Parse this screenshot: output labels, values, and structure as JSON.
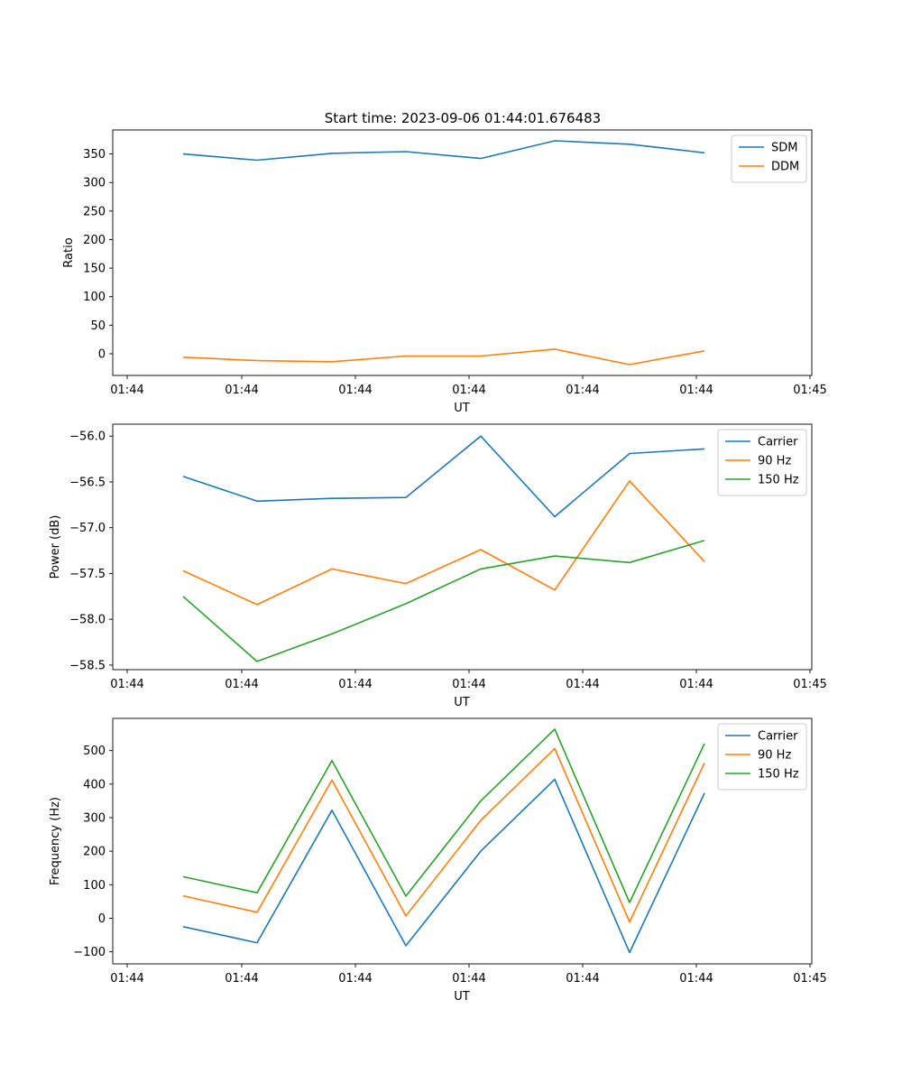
{
  "title": "Start time: 2023-09-06 01:44:01.676483",
  "chart_data": [
    {
      "type": "line",
      "xlabel": "UT",
      "ylabel": "Ratio",
      "x_tick_labels": [
        "01:44",
        "01:44",
        "01:44",
        "01:44",
        "01:44",
        "01:44",
        "01:45"
      ],
      "ylim": [
        -38,
        392
      ],
      "y_ticks": [
        0,
        50,
        100,
        150,
        200,
        250,
        300,
        350
      ],
      "y_tick_labels": [
        "0",
        "50",
        "100",
        "150",
        "200",
        "250",
        "300",
        "350"
      ],
      "legend": "top-right",
      "series": [
        {
          "name": "SDM",
          "color": "#1f77b4",
          "values": [
            350,
            339,
            351,
            354,
            342,
            373,
            367,
            352
          ]
        },
        {
          "name": "DDM",
          "color": "#ff7f0e",
          "values": [
            -6,
            -12,
            -14,
            -4,
            -4,
            8,
            -19,
            5
          ]
        }
      ]
    },
    {
      "type": "line",
      "xlabel": "UT",
      "ylabel": "Power (dB)",
      "x_tick_labels": [
        "01:44",
        "01:44",
        "01:44",
        "01:44",
        "01:44",
        "01:44",
        "01:45"
      ],
      "ylim": [
        -58.55,
        -55.87
      ],
      "y_ticks": [
        -58.5,
        -58.0,
        -57.5,
        -57.0,
        -56.5,
        -56.0
      ],
      "y_tick_labels": [
        "−58.5",
        "−58.0",
        "−57.5",
        "−57.0",
        "−56.5",
        "−56.0"
      ],
      "legend": "top-right",
      "series": [
        {
          "name": "Carrier",
          "color": "#1f77b4",
          "values": [
            -56.44,
            -56.71,
            -56.68,
            -56.67,
            -56.0,
            -56.88,
            -56.19,
            -56.14
          ]
        },
        {
          "name": "90 Hz",
          "color": "#ff7f0e",
          "values": [
            -57.47,
            -57.84,
            -57.45,
            -57.61,
            -57.24,
            -57.68,
            -56.49,
            -57.37
          ]
        },
        {
          "name": "150 Hz",
          "color": "#2ca02c",
          "values": [
            -57.75,
            -58.46,
            -58.16,
            -57.83,
            -57.45,
            -57.31,
            -57.38,
            -57.14
          ]
        }
      ]
    },
    {
      "type": "line",
      "xlabel": "UT",
      "ylabel": "Frequency (Hz)",
      "x_tick_labels": [
        "01:44",
        "01:44",
        "01:44",
        "01:44",
        "01:44",
        "01:44",
        "01:45"
      ],
      "ylim": [
        -136,
        596
      ],
      "y_ticks": [
        -100,
        0,
        100,
        200,
        300,
        400,
        500
      ],
      "y_tick_labels": [
        "−100",
        "0",
        "100",
        "200",
        "300",
        "400",
        "500"
      ],
      "legend": "top-right",
      "series": [
        {
          "name": "Carrier",
          "color": "#1f77b4",
          "values": [
            -25,
            -73,
            322,
            -82,
            200,
            414,
            -102,
            373
          ]
        },
        {
          "name": "90 Hz",
          "color": "#ff7f0e",
          "values": [
            67,
            18,
            412,
            7,
            292,
            506,
            -11,
            463
          ]
        },
        {
          "name": "150 Hz",
          "color": "#2ca02c",
          "values": [
            124,
            76,
            470,
            66,
            350,
            564,
            47,
            521
          ]
        }
      ]
    }
  ]
}
